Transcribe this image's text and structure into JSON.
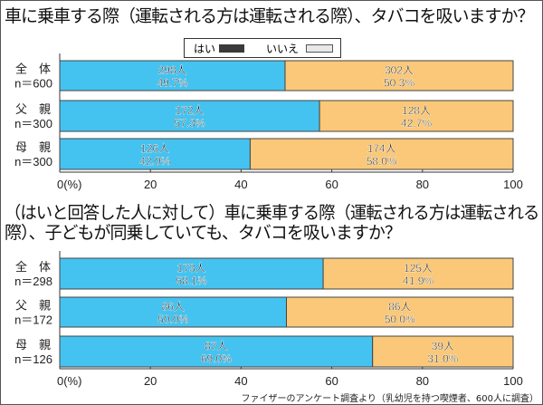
{
  "legend": {
    "yes_label": "はい",
    "no_label": "いいえ",
    "yes_color": "#3a3a3a",
    "no_color": "#e8e8e8"
  },
  "colors": {
    "yes_bar": "#45c3f0",
    "no_bar": "#fac878"
  },
  "source": "ファイザーのアンケート調査より（乳幼児を持つ喫煙者、600人に調査）",
  "chart_data": [
    {
      "type": "bar",
      "stacked": true,
      "orientation": "horizontal",
      "title": "車に乗車する際（運転される方は運転される際）、タバコを吸いますか？",
      "categories": [
        {
          "label": "全　体",
          "n": "n＝600"
        },
        {
          "label": "父　親",
          "n": "n＝300"
        },
        {
          "label": "母　親",
          "n": "n＝300"
        }
      ],
      "series": [
        {
          "name": "はい",
          "counts": [
            "298人",
            "172人",
            "126人"
          ],
          "values": [
            49.7,
            57.3,
            42.0
          ],
          "labels": [
            "49.7%",
            "57.3%",
            "42.0%"
          ]
        },
        {
          "name": "いいえ",
          "counts": [
            "302人",
            "128人",
            "174人"
          ],
          "values": [
            50.3,
            42.7,
            58.0
          ],
          "labels": [
            "50.3%",
            "42.7%",
            "58.0%"
          ]
        }
      ],
      "xlim": [
        0,
        100
      ],
      "xticks": [
        "0(%)",
        "20",
        "40",
        "60",
        "80",
        "100"
      ]
    },
    {
      "type": "bar",
      "stacked": true,
      "orientation": "horizontal",
      "title": "（はいと回答した人に対して）車に乗車する際（運転される方は運転される際）、子どもが同乗していても、タバコを吸いますか？",
      "title_lines": [
        "（はいと回答した人に対して）車に乗車する際（運転される方は運転される",
        "際）、子どもが同乗していても、タバコを吸いますか？"
      ],
      "categories": [
        {
          "label": "全　体",
          "n": "n＝298"
        },
        {
          "label": "父　親",
          "n": "n＝172"
        },
        {
          "label": "母　親",
          "n": "n＝126"
        }
      ],
      "series": [
        {
          "name": "はい",
          "counts": [
            "173人",
            "86人",
            "87人"
          ],
          "values": [
            58.1,
            50.0,
            69.0
          ],
          "labels": [
            "58.1%",
            "50.0%",
            "69.0%"
          ]
        },
        {
          "name": "いいえ",
          "counts": [
            "125人",
            "86人",
            "39人"
          ],
          "values": [
            41.9,
            50.0,
            31.0
          ],
          "labels": [
            "41.9%",
            "50.0%",
            "31.0%"
          ]
        }
      ],
      "xlim": [
        0,
        100
      ],
      "xticks": [
        "0(%)",
        "20",
        "40",
        "60",
        "80",
        "100"
      ]
    }
  ]
}
